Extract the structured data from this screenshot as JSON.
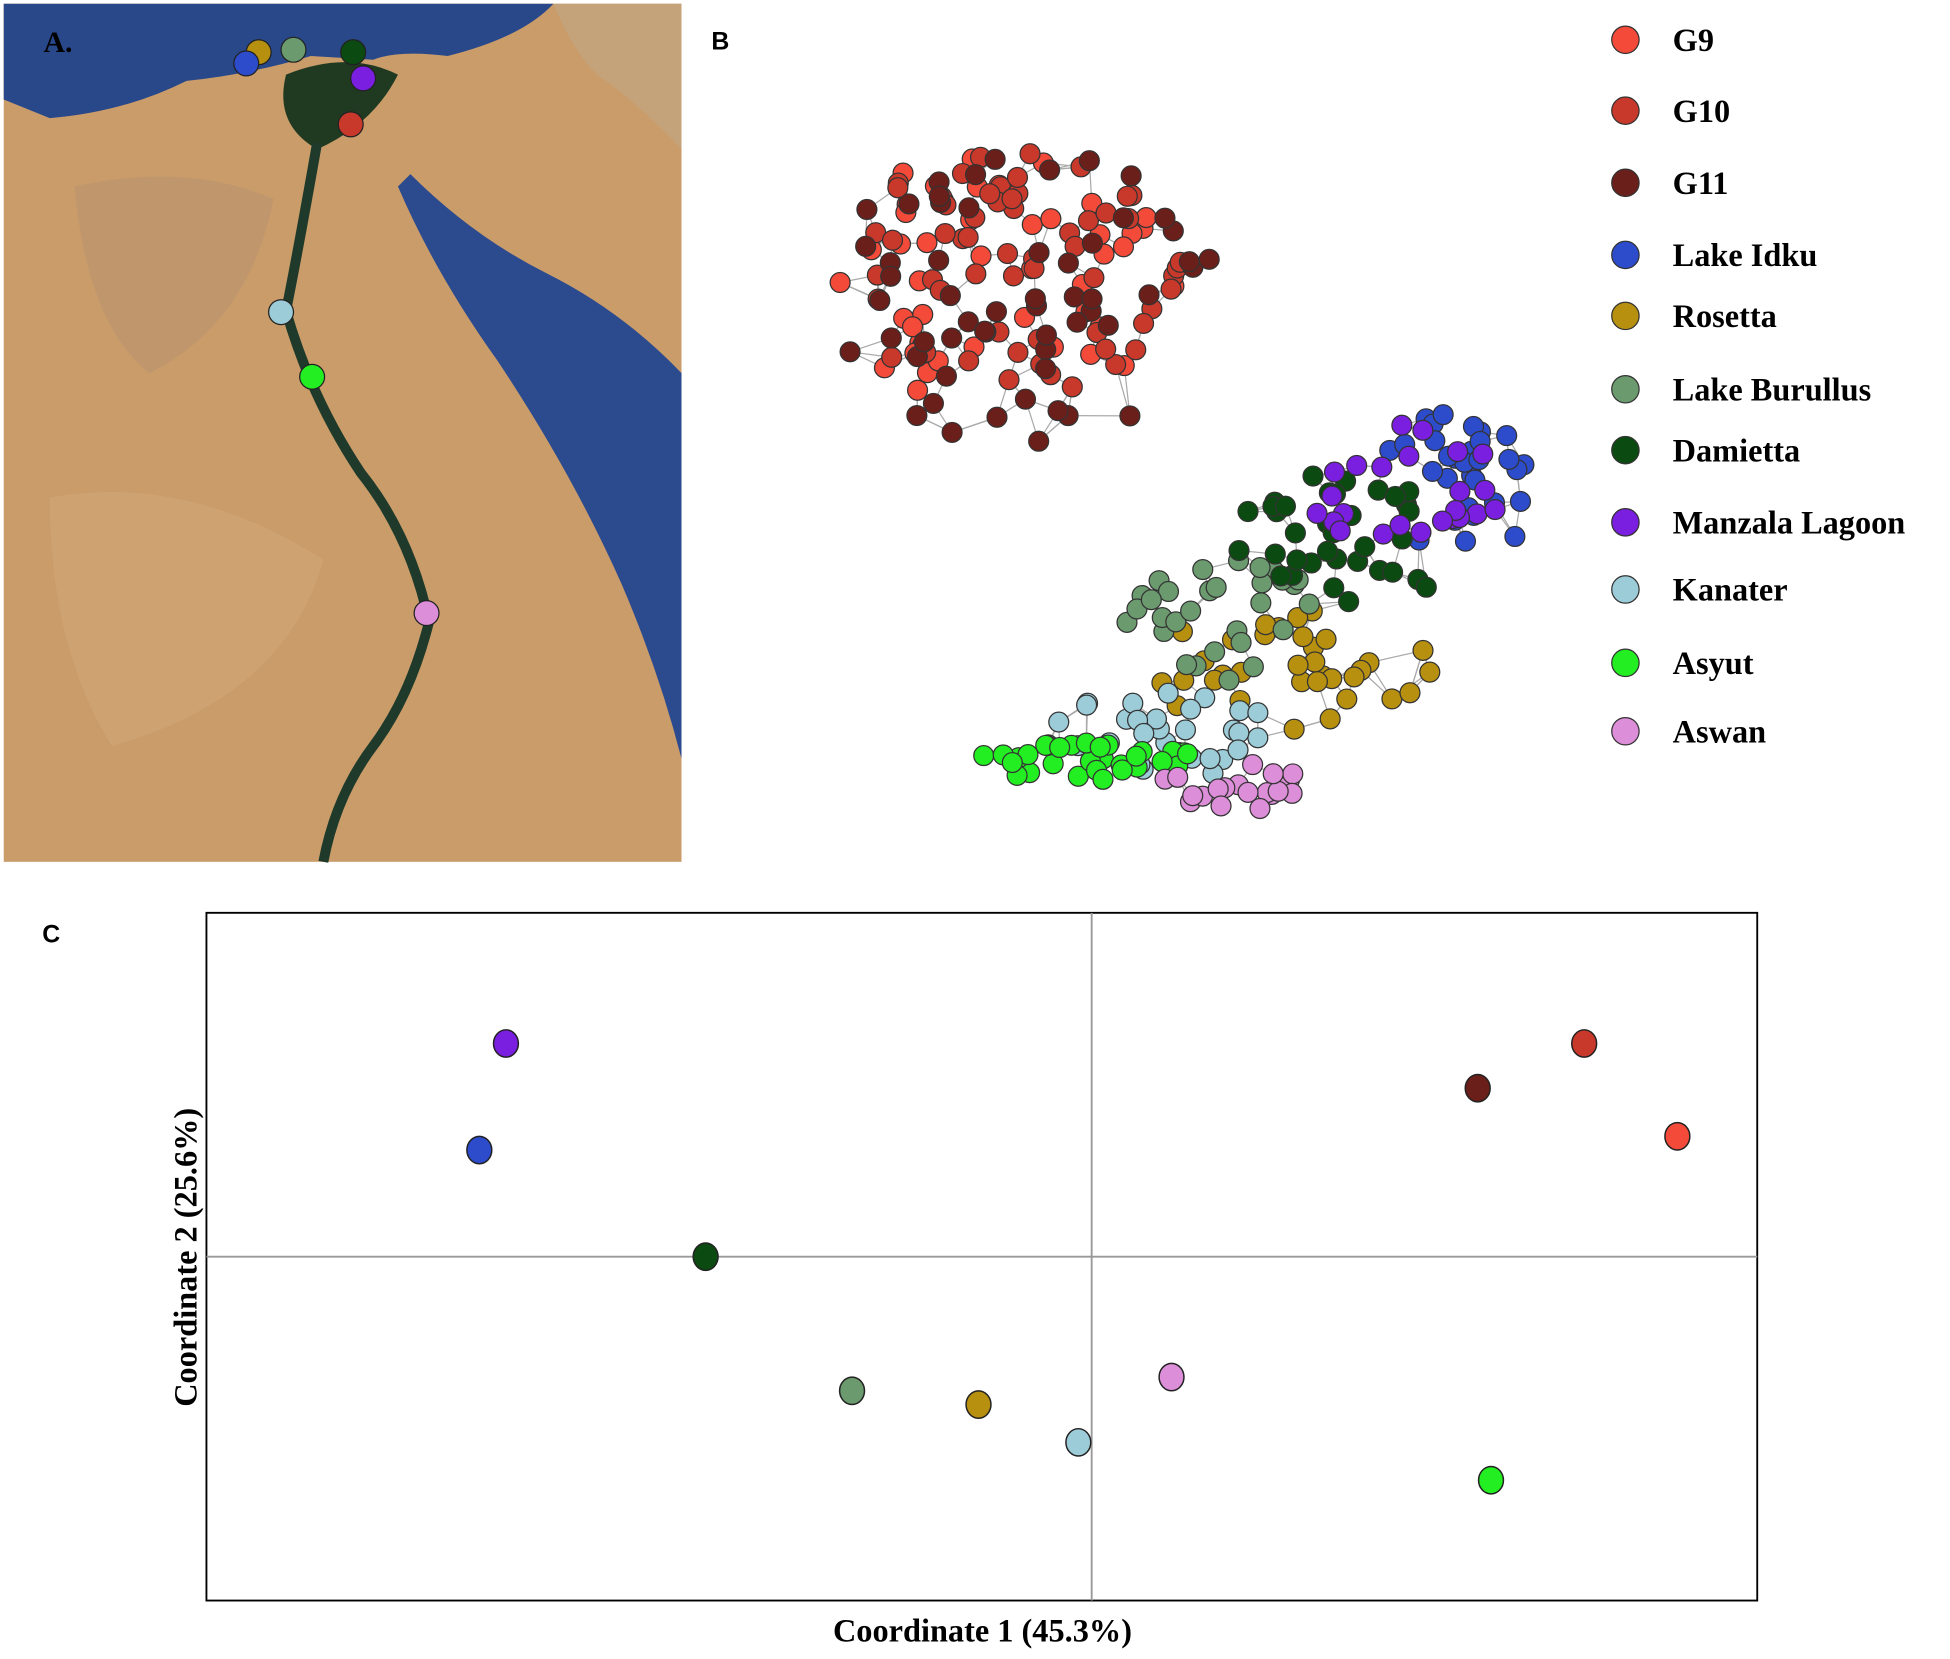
{
  "panels": {
    "a": {
      "label": "A."
    },
    "b": {
      "label": "B"
    }
  },
  "chart_data": {
    "type": "scatter",
    "title": "C",
    "x_label": "Coordinate 1 (45.3%)",
    "y_label": "Coordinate 2 (25.6%)",
    "xlim": [
      -1.33,
      1.0
    ],
    "ylim": [
      -1.0,
      1.0
    ],
    "series": [
      {
        "name": "G9",
        "color": "#f44a3a",
        "x": [
          0.88
        ],
        "values": [
          0.35
        ]
      },
      {
        "name": "G10",
        "color": "#c8392b",
        "x": [
          0.74
        ],
        "values": [
          0.62
        ]
      },
      {
        "name": "G11",
        "color": "#6b1f1a",
        "x": [
          0.58
        ],
        "values": [
          0.49
        ]
      },
      {
        "name": "Lake Idku",
        "color": "#2c4ccc",
        "x": [
          -0.92
        ],
        "values": [
          0.31
        ]
      },
      {
        "name": "Rosetta",
        "color": "#b8900f",
        "x": [
          -0.17
        ],
        "values": [
          -0.43
        ]
      },
      {
        "name": "Lake Burullus",
        "color": "#6a9a6e",
        "x": [
          -0.36
        ],
        "values": [
          -0.39
        ]
      },
      {
        "name": "Damietta",
        "color": "#0b4a10",
        "x": [
          -0.58
        ],
        "values": [
          0.0
        ]
      },
      {
        "name": "Manzala Lagoon",
        "color": "#7a1ee0",
        "x": [
          -0.88
        ],
        "values": [
          0.62
        ]
      },
      {
        "name": "Kanater",
        "color": "#9cccd8",
        "x": [
          -0.02
        ],
        "values": [
          -0.54
        ]
      },
      {
        "name": "Asyut",
        "color": "#22ee22",
        "x": [
          0.6
        ],
        "values": [
          -0.65
        ]
      },
      {
        "name": "Aswan",
        "color": "#dc8ed8",
        "x": [
          0.12
        ],
        "values": [
          -0.35
        ]
      }
    ]
  }
}
